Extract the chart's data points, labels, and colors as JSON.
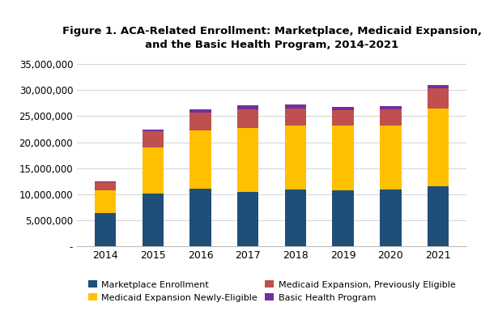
{
  "years": [
    "2014",
    "2015",
    "2016",
    "2017",
    "2018",
    "2019",
    "2020",
    "2021"
  ],
  "marketplace": [
    6350000,
    10150000,
    11100000,
    10450000,
    10800000,
    10750000,
    10800000,
    11500000
  ],
  "medicaid_new": [
    4300000,
    8900000,
    11200000,
    12300000,
    12400000,
    12450000,
    12400000,
    15000000
  ],
  "medicaid_prev": [
    1700000,
    3000000,
    3400000,
    3600000,
    3300000,
    3000000,
    3100000,
    3800000
  ],
  "basic_health": [
    50000,
    350000,
    650000,
    700000,
    700000,
    650000,
    650000,
    700000
  ],
  "colors": {
    "marketplace": "#1F4E79",
    "medicaid_new": "#FFC000",
    "medicaid_prev": "#C0504D",
    "basic_health": "#7030A0"
  },
  "title_line1": "Figure 1. ACA-Related Enrollment: Marketplace, Medicaid Expansion,",
  "title_line2": "and the Basic Health Program, 2014-2021",
  "legend": [
    "Marketplace Enrollment",
    "Medicaid Expansion Newly-Eligible",
    "Medicaid Expansion, Previously Eligible",
    "Basic Health Program"
  ],
  "ylim": [
    0,
    36000000
  ],
  "yticks": [
    0,
    5000000,
    10000000,
    15000000,
    20000000,
    25000000,
    30000000,
    35000000
  ],
  "background_color": "#FFFFFF",
  "bar_width": 0.45,
  "figsize": [
    5.94,
    4.05
  ],
  "dpi": 100
}
